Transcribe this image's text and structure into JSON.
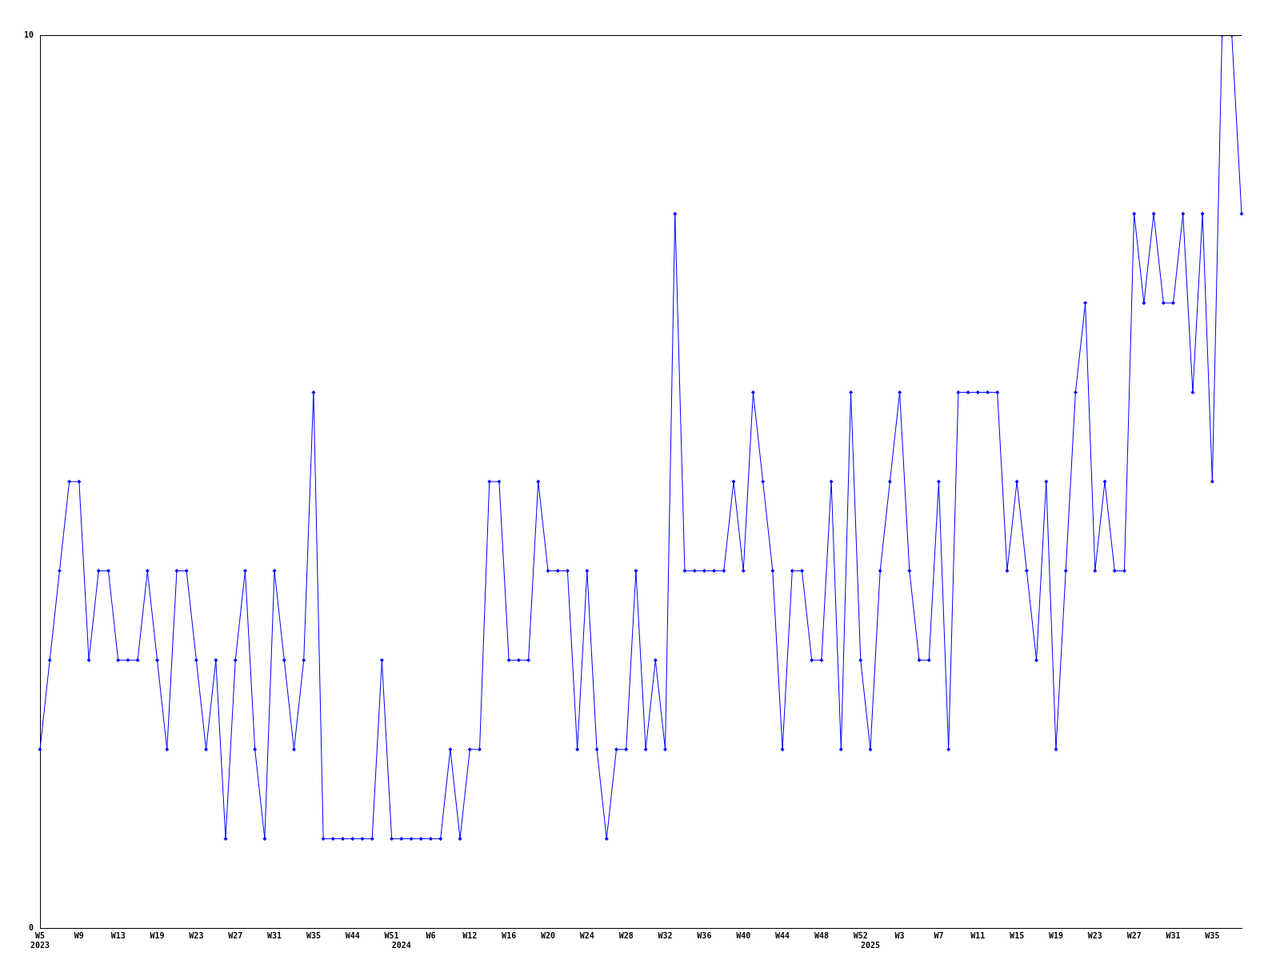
{
  "chart_data": {
    "type": "line",
    "categories": [
      "W5\n2023",
      null,
      null,
      null,
      "W9",
      null,
      null,
      null,
      "W13",
      null,
      null,
      null,
      "W19",
      null,
      null,
      null,
      "W23",
      null,
      null,
      null,
      "W27",
      null,
      null,
      null,
      "W31",
      null,
      null,
      null,
      "W35",
      null,
      null,
      null,
      "W44",
      null,
      null,
      null,
      "W51",
      "\n2024",
      null,
      null,
      "W6",
      null,
      null,
      null,
      "W12",
      null,
      null,
      null,
      "W16",
      null,
      null,
      null,
      "W20",
      null,
      null,
      null,
      "W24",
      null,
      null,
      null,
      "W28",
      null,
      null,
      null,
      "W32",
      null,
      null,
      null,
      "W36",
      null,
      null,
      null,
      "W40",
      null,
      null,
      null,
      "W44",
      null,
      null,
      null,
      "W48",
      null,
      null,
      null,
      "W52",
      "\n2025",
      null,
      null,
      "W3",
      null,
      null,
      null,
      "W7",
      null,
      null,
      null,
      "W11",
      null,
      null,
      null,
      "W15",
      null,
      null,
      null,
      "W19",
      null,
      null,
      null,
      "W23",
      null,
      null,
      null,
      "W27",
      null,
      null,
      null,
      "W31",
      null,
      null,
      null,
      "W35",
      null,
      null,
      null
    ],
    "series": [
      {
        "color": "#0000ff",
        "values": [
          2,
          3,
          4,
          5,
          5,
          3,
          4,
          4,
          3,
          3,
          3,
          4,
          3,
          2,
          4,
          4,
          3,
          2,
          3,
          1,
          3,
          4,
          2,
          1,
          4,
          3,
          2,
          3,
          6,
          1,
          1,
          1,
          1,
          1,
          1,
          3,
          1,
          1,
          1,
          1,
          1,
          1,
          2,
          1,
          2,
          2,
          5,
          5,
          3,
          3,
          3,
          5,
          4,
          4,
          4,
          2,
          4,
          2,
          1,
          2,
          2,
          4,
          2,
          3,
          2,
          8,
          4,
          4,
          4,
          4,
          4,
          5,
          4,
          6,
          5,
          4,
          2,
          4,
          4,
          3,
          3,
          5,
          2,
          6,
          3,
          2,
          4,
          5,
          6,
          4,
          3,
          3,
          5,
          2,
          6,
          6,
          6,
          6,
          6,
          4,
          5,
          4,
          3,
          5,
          2,
          4,
          6,
          7,
          4,
          5,
          4,
          4,
          8,
          7,
          8,
          7,
          7,
          8,
          6,
          8,
          5,
          10,
          10,
          8
        ]
      }
    ],
    "ylim": [
      0,
      10
    ],
    "yticks": [
      0,
      10
    ],
    "grid": false,
    "legend": false,
    "marker": "diamond",
    "line_style": "solid"
  }
}
